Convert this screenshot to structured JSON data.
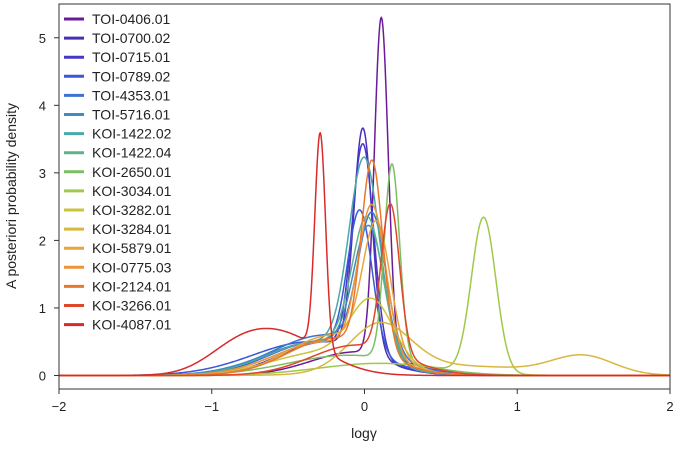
{
  "chart_data": {
    "type": "line",
    "title": "",
    "xlabel": "logγ",
    "ylabel": "A posteriori probability density",
    "xlim": [
      -2,
      2
    ],
    "ylim": [
      -0.2,
      5.5
    ],
    "xticks": [
      -2,
      -1,
      0,
      1,
      2
    ],
    "xtick_labels": [
      "−2",
      "−1",
      "0",
      "1",
      "2"
    ],
    "yticks": [
      0,
      1,
      2,
      3,
      4,
      5
    ],
    "ytick_labels": [
      "0",
      "1",
      "2",
      "3",
      "4",
      "5"
    ],
    "grid": false,
    "legend_position": "top-left",
    "series": [
      {
        "name": "TOI-0406.01",
        "color": "#6a1b9a",
        "comps": [
          [
            0.11,
            0.045,
            5.0
          ],
          [
            -0.05,
            0.3,
            0.35
          ]
        ]
      },
      {
        "name": "TOI-0700.02",
        "color": "#4a2fb5",
        "comps": [
          [
            -0.01,
            0.06,
            3.3
          ],
          [
            -0.25,
            0.3,
            0.5
          ]
        ]
      },
      {
        "name": "TOI-0715.01",
        "color": "#4538c9",
        "comps": [
          [
            -0.01,
            0.07,
            3.1
          ],
          [
            -0.3,
            0.32,
            0.5
          ]
        ]
      },
      {
        "name": "TOI-0789.02",
        "color": "#3a57d6",
        "comps": [
          [
            -0.03,
            0.08,
            2.1
          ],
          [
            -0.35,
            0.38,
            0.5
          ]
        ]
      },
      {
        "name": "TOI-4353.01",
        "color": "#3f73cf",
        "comps": [
          [
            0.05,
            0.09,
            2.0
          ],
          [
            -0.25,
            0.35,
            0.6
          ]
        ]
      },
      {
        "name": "TOI-5716.01",
        "color": "#3e8cc2",
        "comps": [
          [
            0.03,
            0.1,
            1.9
          ],
          [
            -0.3,
            0.35,
            0.5
          ]
        ]
      },
      {
        "name": "KOI-1422.02",
        "color": "#4aa8a8",
        "comps": [
          [
            0.0,
            0.1,
            2.9
          ],
          [
            -0.3,
            0.33,
            0.5
          ]
        ]
      },
      {
        "name": "KOI-1422.04",
        "color": "#5fb38c",
        "comps": [
          [
            0.02,
            0.1,
            2.0
          ],
          [
            -0.25,
            0.33,
            0.5
          ]
        ]
      },
      {
        "name": "KOI-2650.01",
        "color": "#7cbf62",
        "comps": [
          [
            0.18,
            0.05,
            2.9
          ],
          [
            -0.1,
            0.4,
            0.3
          ]
        ]
      },
      {
        "name": "KOI-3034.01",
        "color": "#9ec94a",
        "comps": [
          [
            0.78,
            0.08,
            2.3
          ],
          [
            0.1,
            0.4,
            0.18
          ]
        ]
      },
      {
        "name": "KOI-3282.01",
        "color": "#c9c43c",
        "comps": [
          [
            0.05,
            0.14,
            0.9
          ],
          [
            -0.25,
            0.35,
            0.35
          ]
        ]
      },
      {
        "name": "KOI-3284.01",
        "color": "#d9b640",
        "comps": [
          [
            1.43,
            0.2,
            0.27
          ],
          [
            0.1,
            0.2,
            0.7
          ],
          [
            0.6,
            0.5,
            0.14
          ]
        ]
      },
      {
        "name": "KOI-5879.01",
        "color": "#e7a53b",
        "comps": [
          [
            0.08,
            0.09,
            1.9
          ],
          [
            -0.2,
            0.3,
            0.6
          ]
        ]
      },
      {
        "name": "KOI-0775.03",
        "color": "#eb9538",
        "comps": [
          [
            0.05,
            0.09,
            2.2
          ],
          [
            -0.25,
            0.33,
            0.5
          ]
        ]
      },
      {
        "name": "KOI-2124.01",
        "color": "#e8782e",
        "comps": [
          [
            0.05,
            0.07,
            2.8
          ],
          [
            -0.2,
            0.3,
            0.55
          ]
        ]
      },
      {
        "name": "KOI-3266.01",
        "color": "#e0462a",
        "comps": [
          [
            0.17,
            0.06,
            2.2
          ],
          [
            -0.05,
            0.3,
            0.45
          ]
        ]
      },
      {
        "name": "KOI-4087.01",
        "color": "#d92a2a",
        "comps": [
          [
            -0.29,
            0.035,
            3.2
          ],
          [
            -0.55,
            0.28,
            0.6
          ],
          [
            -0.85,
            0.2,
            0.22
          ]
        ]
      }
    ]
  }
}
